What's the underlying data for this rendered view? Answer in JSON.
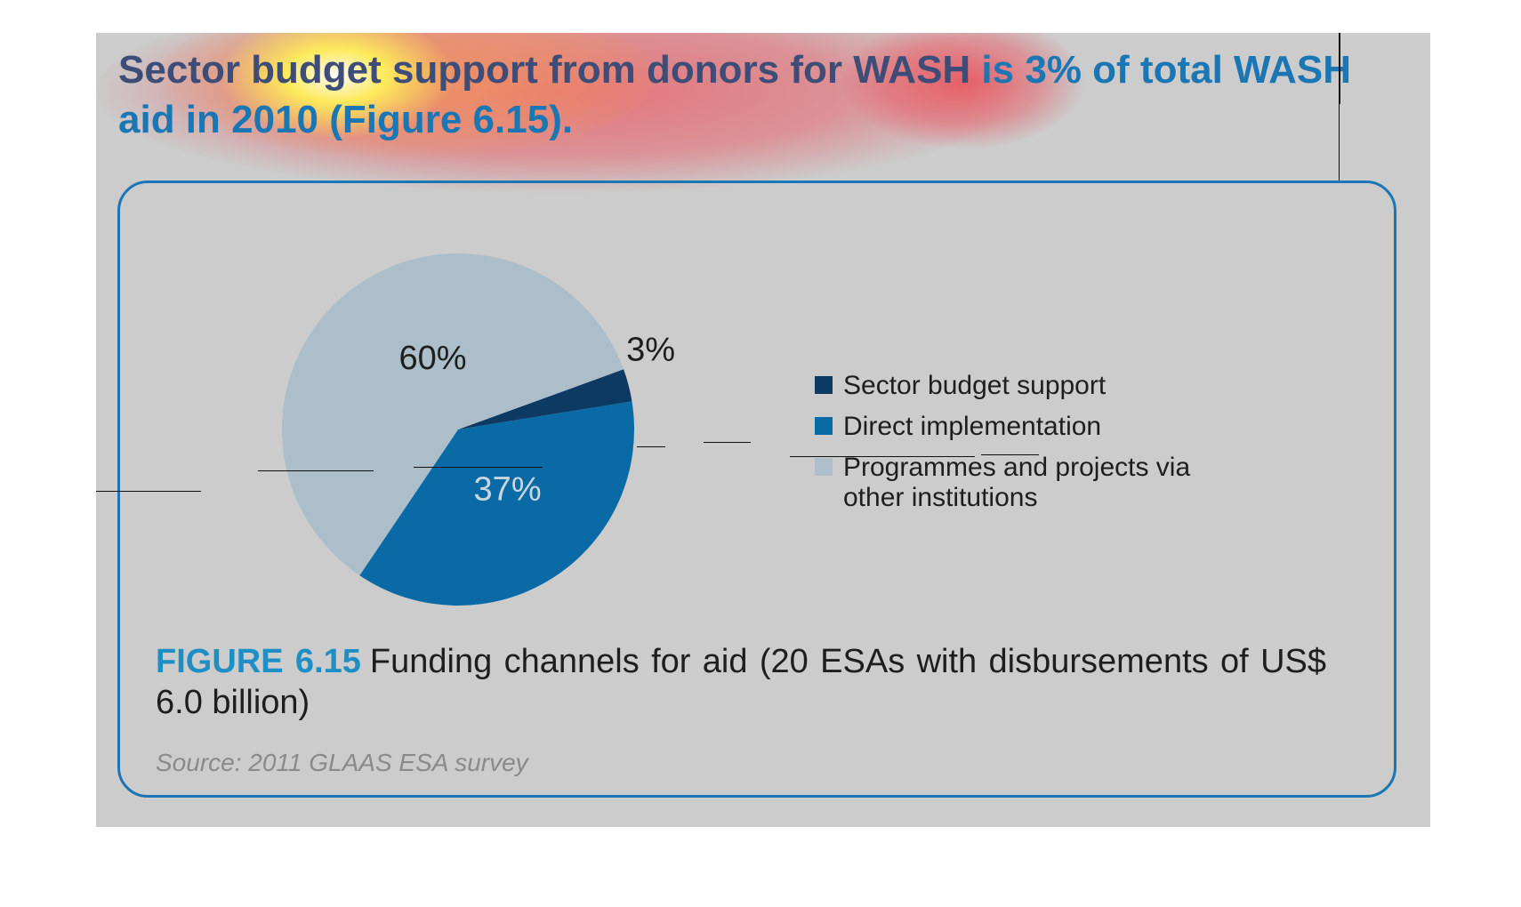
{
  "headline": {
    "dim_part": "Sector budget support from donors for WASH",
    "accent_part": " is 3% of total WASH aid in 2010 (Figure 6.15)."
  },
  "chart_data": {
    "type": "pie",
    "slices": [
      {
        "name": "Sector budget support",
        "value": 3,
        "label": "3%",
        "color": "#0c3a62"
      },
      {
        "name": "Direct implementation",
        "value": 37,
        "label": "37%",
        "color": "#0a6aa6"
      },
      {
        "name": "Programmes and projects via other institutions",
        "value": 60,
        "label": "60%",
        "color": "#abbeca"
      }
    ],
    "legend": {
      "placement": "right",
      "items": [
        "Sector budget support",
        "Direct implementation",
        "Programmes and projects via other institutions"
      ]
    }
  },
  "caption": {
    "lead": "FIGURE 6.15",
    "text": "Funding channels for aid (20 ESAs with disbursements of US$ 6.0 billion)"
  },
  "source": "Source: 2011 GLAAS ESA survey",
  "colors": {
    "panel_background": "#cccccc",
    "accent": "#1b76b4",
    "headline_dim": "#3d4d78",
    "caption_lead": "#1e8fc4",
    "heatmap_hot": "#fff45a",
    "heatmap_warm": "#e8636b"
  }
}
